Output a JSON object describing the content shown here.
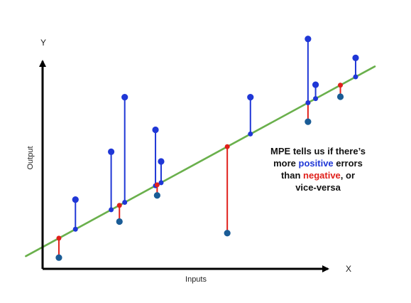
{
  "chart_data": {
    "type": "scatter",
    "title": "",
    "xlabel": "Inputs",
    "ylabel": "Output",
    "x_axis_letter": "X",
    "y_axis_letter": "Y",
    "xlim": [
      0,
      10
    ],
    "ylim": [
      0,
      10
    ],
    "grid": false,
    "regression_line": {
      "slope": 0.778,
      "intercept": 0.73,
      "color": "#6ab04c"
    },
    "points": [
      {
        "x": 0.45,
        "y": 0.24,
        "predicted": 1.08
      },
      {
        "x": 0.95,
        "y": 2.75,
        "predicted": 1.47
      },
      {
        "x": 2.03,
        "y": 4.82,
        "predicted": 2.31
      },
      {
        "x": 2.28,
        "y": 1.8,
        "predicted": 2.5
      },
      {
        "x": 2.44,
        "y": 7.18,
        "predicted": 2.63
      },
      {
        "x": 3.37,
        "y": 5.77,
        "predicted": 3.35
      },
      {
        "x": 3.42,
        "y": 2.93,
        "predicted": 3.39
      },
      {
        "x": 3.54,
        "y": 4.4,
        "predicted": 3.48
      },
      {
        "x": 5.54,
        "y": 1.3,
        "predicted": 5.04
      },
      {
        "x": 6.24,
        "y": 7.18,
        "predicted": 5.59
      },
      {
        "x": 7.98,
        "y": 6.12,
        "predicted": 6.94
      },
      {
        "x": 7.98,
        "y": 9.7,
        "predicted": 6.94
      },
      {
        "x": 8.21,
        "y": 7.72,
        "predicted": 7.12
      },
      {
        "x": 8.96,
        "y": 7.2,
        "predicted": 7.7
      },
      {
        "x": 9.42,
        "y": 8.88,
        "predicted": 8.06
      }
    ],
    "colors": {
      "point": "#1a5c96",
      "positive_error": "#1f37d6",
      "negative_error": "#e0201b",
      "axis": "#000000"
    }
  },
  "annotation": {
    "line1": "MPE tells us if there’s",
    "line2_prefix": "more ",
    "positive_word": "positive",
    "line2_suffix": " errors",
    "line3_prefix": "than ",
    "negative_word": "negative",
    "line3_suffix": ", or",
    "line4": "vice-versa"
  }
}
